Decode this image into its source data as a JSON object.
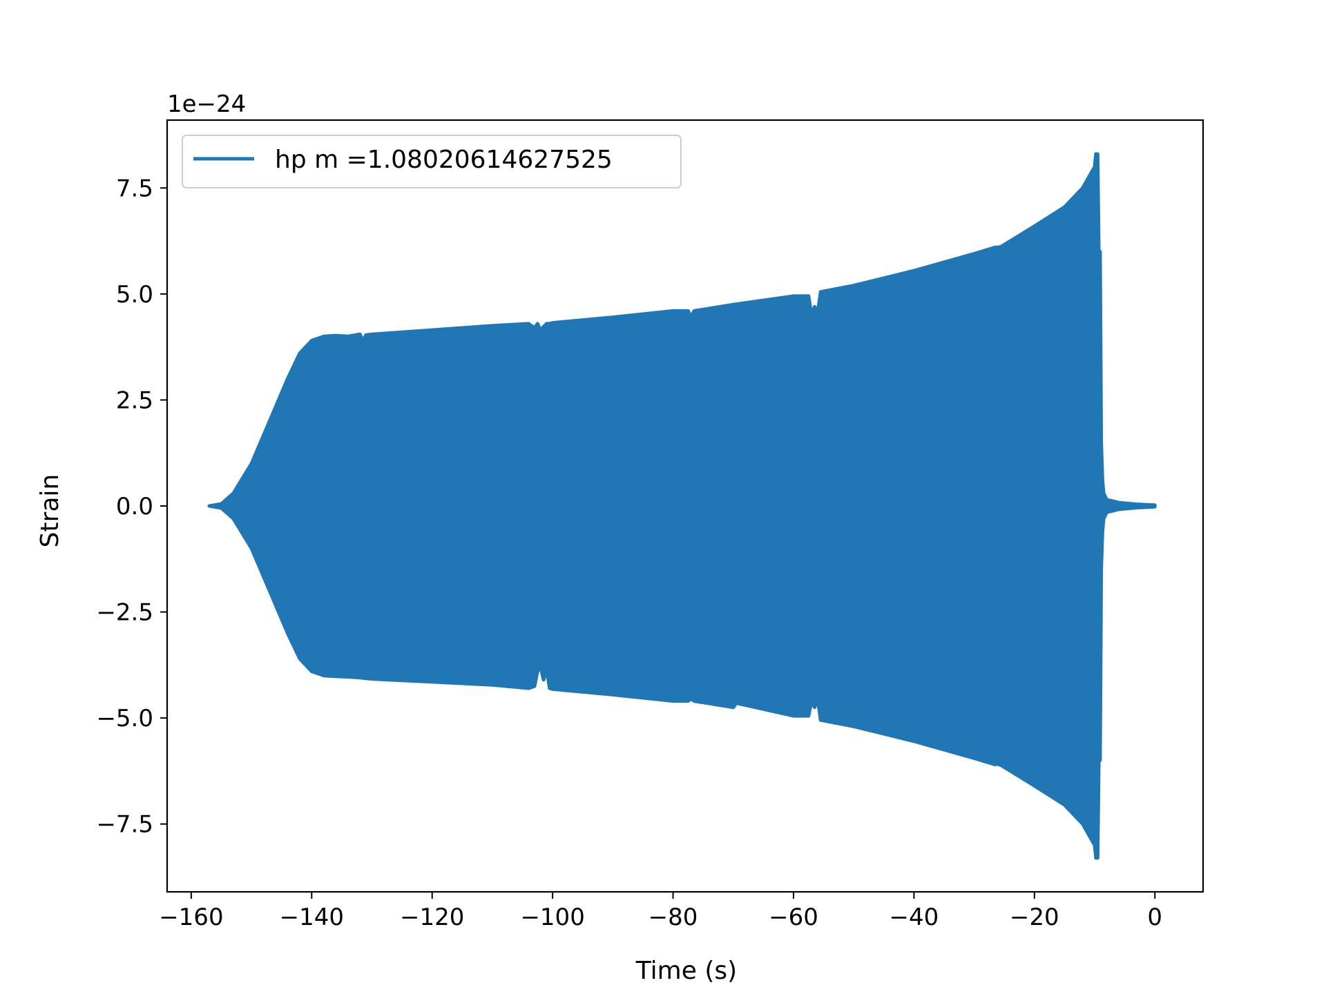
{
  "chart_data": {
    "type": "line",
    "title": "",
    "xlabel": "Time (s)",
    "ylabel": "Strain",
    "y_offset_label": "1e−24",
    "xlim": [
      -164,
      8
    ],
    "ylim": [
      -9.1,
      9.1
    ],
    "x_ticks": [
      -160,
      -140,
      -120,
      -100,
      -80,
      -60,
      -40,
      -20,
      0
    ],
    "x_tick_labels": [
      "−160",
      "−140",
      "−120",
      "−100",
      "−80",
      "−60",
      "−40",
      "−20",
      "0"
    ],
    "y_ticks": [
      -7.5,
      -5.0,
      -2.5,
      0.0,
      2.5,
      5.0,
      7.5
    ],
    "y_tick_labels": [
      "−7.5",
      "−5.0",
      "−2.5",
      "0.0",
      "2.5",
      "5.0",
      "7.5"
    ],
    "grid": false,
    "legend_position": "top-left",
    "series": [
      {
        "name": "hp m =1.08020614627525",
        "color": "#2077b4",
        "envelope_upper": {
          "x": [
            -157,
            -155,
            -153,
            -150,
            -147,
            -144,
            -142,
            -140,
            -138,
            -136,
            -134,
            -132,
            -131.5,
            -131,
            -130,
            -120,
            -110,
            -104,
            -103,
            -102.5,
            -102,
            -101,
            -100.5,
            -100,
            -90,
            -80,
            -77.5,
            -77,
            -76.5,
            -70,
            -60,
            -57.5,
            -57,
            -56.5,
            -56,
            -55.5,
            -50,
            -40,
            -30,
            -26.5,
            -26,
            -25.5,
            -20,
            -15,
            -12,
            -10,
            -9.8,
            -9.5,
            -9.3,
            -9.1,
            -9.0,
            -8.9,
            -8.7,
            -8.5,
            -8,
            -6,
            -3,
            0
          ],
          "y": [
            0.0,
            0.05,
            0.3,
            1.0,
            2.0,
            3.0,
            3.6,
            3.9,
            4.0,
            4.02,
            4.0,
            4.05,
            3.9,
            4.03,
            4.05,
            4.15,
            4.25,
            4.3,
            4.2,
            4.3,
            4.15,
            4.3,
            4.3,
            4.32,
            4.45,
            4.6,
            4.6,
            4.45,
            4.6,
            4.75,
            4.95,
            4.95,
            4.5,
            4.7,
            4.55,
            5.05,
            5.2,
            5.55,
            5.95,
            6.1,
            6.1,
            6.12,
            6.6,
            7.05,
            7.5,
            8.0,
            8.3,
            8.3,
            6.0,
            6.0,
            4.0,
            1.5,
            0.6,
            0.3,
            0.15,
            0.08,
            0.04,
            0.02
          ]
        },
        "envelope_lower": {
          "x": [
            -157,
            -155,
            -153,
            -150,
            -147,
            -144,
            -142,
            -140,
            -138,
            -136,
            -134,
            -132,
            -130,
            -120,
            -110,
            -104,
            -103,
            -102.5,
            -102,
            -101.5,
            -101,
            -100.5,
            -100,
            -90,
            -80,
            -77.5,
            -77,
            -76.5,
            -70,
            -69.5,
            -60,
            -57.5,
            -57,
            -56.5,
            -56,
            -55.5,
            -50,
            -40,
            -30,
            -26.5,
            -26.2,
            -26,
            -25.8,
            -25.5,
            -20,
            -15,
            -12,
            -10,
            -9.8,
            -9.5,
            -9.3,
            -9.1,
            -9.0,
            -8.9,
            -8.7,
            -8.5,
            -8,
            -6,
            -3,
            0
          ],
          "y": [
            0.0,
            -0.05,
            -0.3,
            -1.0,
            -2.0,
            -3.0,
            -3.6,
            -3.9,
            -4.0,
            -4.02,
            -4.03,
            -4.05,
            -4.08,
            -4.15,
            -4.22,
            -4.3,
            -4.25,
            -3.9,
            -3.8,
            -4.1,
            -3.85,
            -4.3,
            -4.32,
            -4.45,
            -4.6,
            -4.6,
            -4.55,
            -4.6,
            -4.75,
            -4.65,
            -4.95,
            -4.95,
            -4.6,
            -4.75,
            -4.55,
            -5.05,
            -5.2,
            -5.55,
            -5.95,
            -6.1,
            -4.9,
            -6.1,
            -6.1,
            -6.12,
            -6.6,
            -7.05,
            -7.5,
            -8.0,
            -8.3,
            -8.3,
            -6.0,
            -6.0,
            -4.0,
            -1.5,
            -0.6,
            -0.3,
            -0.15,
            -0.08,
            -0.04,
            -0.02
          ]
        }
      }
    ]
  }
}
